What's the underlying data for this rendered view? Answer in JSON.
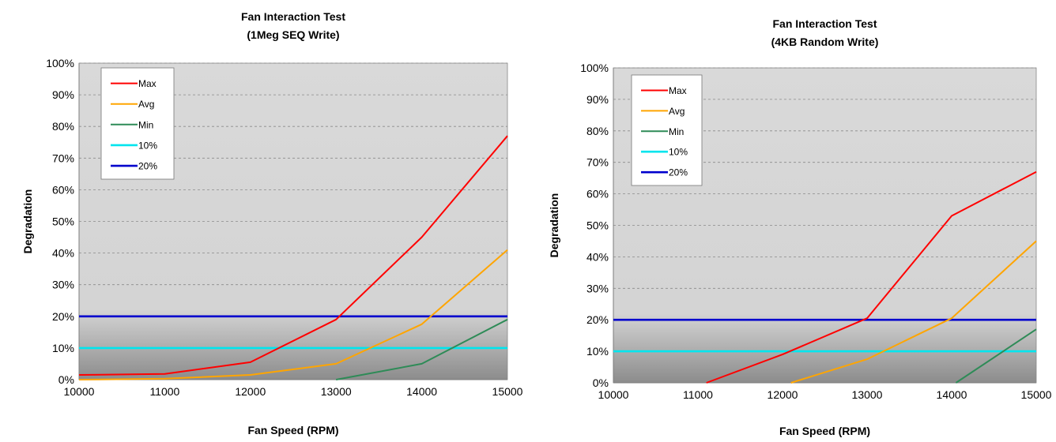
{
  "chart_data": [
    {
      "type": "line",
      "title": "Fan Interaction Test",
      "subtitle": "(1Meg SEQ Write)",
      "xlabel": "Fan Speed (RPM)",
      "ylabel": "Degradation",
      "xlim": [
        10000,
        15000
      ],
      "ylim": [
        0,
        100
      ],
      "x_ticks": [
        "10000",
        "11000",
        "12000",
        "13000",
        "14000",
        "15000"
      ],
      "y_ticks": [
        "0%",
        "10%",
        "20%",
        "30%",
        "40%",
        "50%",
        "60%",
        "70%",
        "80%",
        "90%",
        "100%"
      ],
      "grid": true,
      "legend_position": "top-left",
      "series": [
        {
          "name": "Max",
          "color": "#ff0000",
          "x": [
            10000,
            11000,
            12000,
            13000,
            14000,
            15000
          ],
          "values": [
            1.5,
            1.8,
            5.5,
            19,
            45,
            77
          ]
        },
        {
          "name": "Avg",
          "color": "#ffa500",
          "x": [
            10000,
            11000,
            12000,
            13000,
            14000,
            15000
          ],
          "values": [
            0,
            0.3,
            1.5,
            5,
            17.5,
            41
          ]
        },
        {
          "name": "Min",
          "color": "#2e8b57",
          "x": [
            13000,
            14000,
            15000
          ],
          "values": [
            0,
            5,
            19
          ]
        },
        {
          "name": "10%",
          "color": "#00e5ee",
          "x": [
            10000,
            15000
          ],
          "values": [
            10,
            10
          ]
        },
        {
          "name": "20%",
          "color": "#0000cd",
          "x": [
            10000,
            15000
          ],
          "values": [
            20,
            20
          ]
        }
      ]
    },
    {
      "type": "line",
      "title": "Fan Interaction Test",
      "subtitle": "(4KB Random Write)",
      "xlabel": "Fan Speed (RPM)",
      "ylabel": "Degradation",
      "xlim": [
        10000,
        15000
      ],
      "ylim": [
        0,
        100
      ],
      "x_ticks": [
        "10000",
        "11000",
        "12000",
        "13000",
        "14000",
        "15000"
      ],
      "y_ticks": [
        "0%",
        "10%",
        "20%",
        "30%",
        "40%",
        "50%",
        "60%",
        "70%",
        "80%",
        "90%",
        "100%"
      ],
      "grid": true,
      "legend_position": "top-left",
      "series": [
        {
          "name": "Max",
          "color": "#ff0000",
          "x": [
            11100,
            12000,
            13000,
            14000,
            15000
          ],
          "values": [
            0,
            9,
            20.5,
            53,
            67
          ]
        },
        {
          "name": "Avg",
          "color": "#ffa500",
          "x": [
            12100,
            13000,
            14000,
            15000
          ],
          "values": [
            0,
            7.5,
            20.5,
            45
          ]
        },
        {
          "name": "Min",
          "color": "#2e8b57",
          "x": [
            14050,
            15000
          ],
          "values": [
            0,
            17
          ]
        },
        {
          "name": "10%",
          "color": "#00e5ee",
          "x": [
            10000,
            15000
          ],
          "values": [
            10,
            10
          ]
        },
        {
          "name": "20%",
          "color": "#0000cd",
          "x": [
            10000,
            15000
          ],
          "values": [
            20,
            20
          ]
        }
      ]
    }
  ]
}
